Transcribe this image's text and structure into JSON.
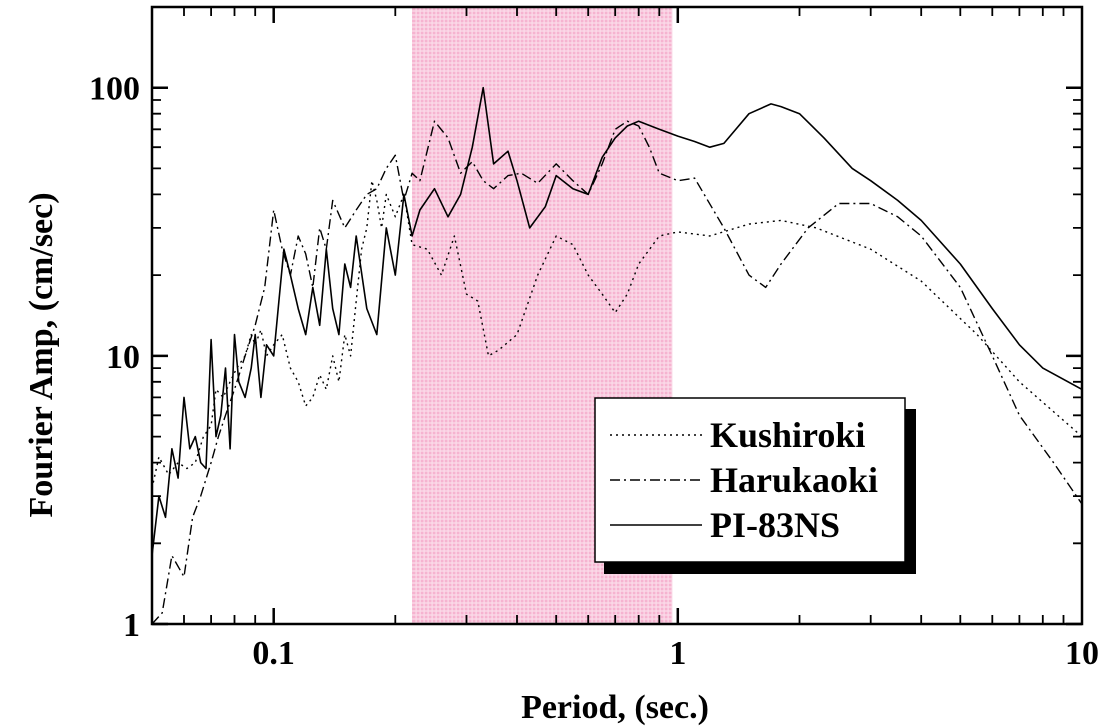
{
  "chart_data": {
    "type": "line",
    "xscale": "log",
    "yscale": "log",
    "xlim": [
      0.05,
      10
    ],
    "ylim": [
      1,
      200
    ],
    "xlabel": "Period, (sec.)",
    "ylabel": "Fourier Amp, (cm/sec)",
    "x_ticks": [
      {
        "value": 0.1,
        "label": "0.1"
      },
      {
        "value": 1,
        "label": "1"
      },
      {
        "value": 10,
        "label": "10"
      }
    ],
    "y_ticks": [
      {
        "value": 1,
        "label": "1"
      },
      {
        "value": 10,
        "label": "10"
      },
      {
        "value": 100,
        "label": "100"
      }
    ],
    "highlight_band": {
      "x_range": [
        0.22,
        0.97
      ],
      "color": "#f6b3d0"
    },
    "legend_position": "lower-right",
    "series": [
      {
        "name": "Kushiroki",
        "style": "dotted",
        "x": [
          0.05,
          0.052,
          0.055,
          0.058,
          0.061,
          0.064,
          0.067,
          0.07,
          0.072,
          0.075,
          0.078,
          0.081,
          0.085,
          0.088,
          0.09,
          0.093,
          0.096,
          0.1,
          0.105,
          0.11,
          0.115,
          0.12,
          0.125,
          0.13,
          0.135,
          0.14,
          0.145,
          0.15,
          0.155,
          0.16,
          0.165,
          0.17,
          0.175,
          0.18,
          0.185,
          0.19,
          0.2,
          0.21,
          0.22,
          0.24,
          0.26,
          0.28,
          0.3,
          0.32,
          0.34,
          0.36,
          0.4,
          0.45,
          0.5,
          0.55,
          0.6,
          0.65,
          0.7,
          0.75,
          0.8,
          0.9,
          1.0,
          1.2,
          1.5,
          1.8,
          2.2,
          3.0,
          4.0,
          5.5,
          7.0,
          10.0
        ],
        "y": [
          3.2,
          4.2,
          3.6,
          4.0,
          3.8,
          4.0,
          5.0,
          5.5,
          7.5,
          7.0,
          8.0,
          9.0,
          10.0,
          12.0,
          11.0,
          12.5,
          10.0,
          11.0,
          12.0,
          9.0,
          8.0,
          6.5,
          7.0,
          8.5,
          7.5,
          10.0,
          8.0,
          12.0,
          10.0,
          16.0,
          25.0,
          30.0,
          45.0,
          38.0,
          30.0,
          40.0,
          33.0,
          40.0,
          26.0,
          25.0,
          20.0,
          28.0,
          17.0,
          16.0,
          10.0,
          10.5,
          12.0,
          20.0,
          28.0,
          26.0,
          20.0,
          17.0,
          14.5,
          17.0,
          22.0,
          28.0,
          29.0,
          28.0,
          31.0,
          32.0,
          30.0,
          25.0,
          19.0,
          12.0,
          8.0,
          5.0
        ]
      },
      {
        "name": "Harukaoki",
        "style": "dash-dot",
        "x": [
          0.05,
          0.053,
          0.056,
          0.06,
          0.063,
          0.066,
          0.07,
          0.073,
          0.076,
          0.08,
          0.085,
          0.09,
          0.095,
          0.1,
          0.105,
          0.11,
          0.115,
          0.12,
          0.125,
          0.13,
          0.135,
          0.14,
          0.15,
          0.16,
          0.17,
          0.18,
          0.19,
          0.2,
          0.21,
          0.22,
          0.23,
          0.25,
          0.27,
          0.29,
          0.31,
          0.33,
          0.35,
          0.38,
          0.41,
          0.45,
          0.5,
          0.55,
          0.6,
          0.65,
          0.7,
          0.75,
          0.8,
          0.85,
          0.9,
          1.0,
          1.1,
          1.3,
          1.5,
          1.65,
          1.8,
          2.1,
          2.5,
          3.0,
          3.5,
          4.0,
          5.0,
          6.0,
          7.0,
          8.5,
          10.0
        ],
        "y": [
          1.0,
          1.1,
          1.8,
          1.5,
          2.5,
          3.0,
          4.0,
          5.0,
          6.0,
          7.5,
          10.0,
          13.0,
          18.0,
          35.0,
          25.0,
          20.0,
          28.0,
          24.0,
          18.0,
          30.0,
          25.0,
          38.0,
          30.0,
          35.0,
          40.0,
          42.0,
          50.0,
          56.0,
          38.0,
          48.0,
          45.0,
          75.0,
          65.0,
          48.0,
          53.0,
          45.0,
          42.0,
          47.0,
          48.0,
          44.0,
          52.0,
          45.0,
          40.0,
          52.0,
          70.0,
          75.0,
          72.0,
          60.0,
          48.0,
          45.0,
          46.0,
          30.0,
          20.0,
          18.0,
          22.0,
          30.0,
          37.0,
          37.0,
          33.0,
          28.0,
          18.0,
          10.0,
          6.0,
          4.0,
          2.8
        ]
      },
      {
        "name": "PI-83NS",
        "style": "solid",
        "x": [
          0.05,
          0.052,
          0.054,
          0.056,
          0.058,
          0.06,
          0.062,
          0.064,
          0.066,
          0.068,
          0.07,
          0.072,
          0.074,
          0.076,
          0.078,
          0.08,
          0.082,
          0.085,
          0.088,
          0.09,
          0.093,
          0.096,
          0.1,
          0.103,
          0.106,
          0.11,
          0.115,
          0.12,
          0.125,
          0.13,
          0.135,
          0.14,
          0.145,
          0.15,
          0.155,
          0.16,
          0.17,
          0.18,
          0.19,
          0.2,
          0.21,
          0.22,
          0.23,
          0.25,
          0.27,
          0.29,
          0.31,
          0.33,
          0.35,
          0.38,
          0.4,
          0.43,
          0.47,
          0.5,
          0.55,
          0.6,
          0.65,
          0.7,
          0.75,
          0.8,
          0.9,
          1.0,
          1.1,
          1.2,
          1.3,
          1.5,
          1.7,
          1.8,
          2.0,
          2.3,
          2.7,
          3.0,
          3.5,
          4.0,
          5.0,
          6.0,
          7.0,
          8.0,
          10.0
        ],
        "y": [
          1.8,
          3.0,
          2.5,
          4.5,
          3.5,
          7.0,
          4.5,
          5.0,
          4.0,
          3.8,
          11.5,
          5.0,
          6.0,
          9.0,
          4.5,
          12.0,
          8.0,
          7.0,
          9.0,
          12.0,
          7.0,
          11.0,
          10.0,
          16.0,
          25.0,
          20.0,
          15.0,
          12.0,
          18.0,
          13.0,
          25.0,
          15.0,
          12.0,
          22.0,
          18.0,
          28.0,
          15.0,
          12.0,
          30.0,
          20.0,
          40.0,
          28.0,
          35.0,
          42.0,
          33.0,
          40.0,
          60.0,
          100.0,
          52.0,
          58.0,
          45.0,
          30.0,
          36.0,
          47.0,
          42.0,
          40.0,
          55.0,
          65.0,
          72.0,
          75.0,
          70.0,
          66.0,
          63.0,
          60.0,
          62.0,
          80.0,
          87.0,
          85.0,
          80.0,
          65.0,
          50.0,
          45.0,
          38.0,
          32.0,
          22.0,
          15.0,
          11.0,
          9.0,
          7.5
        ]
      }
    ]
  }
}
